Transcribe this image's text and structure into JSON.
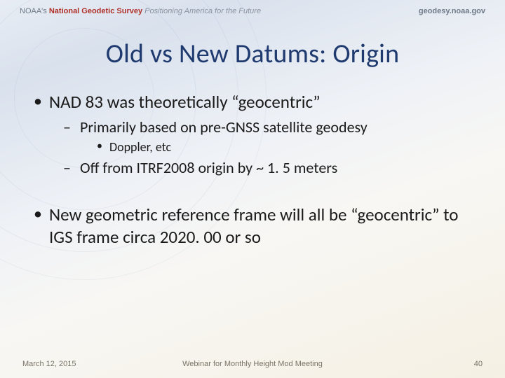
{
  "header": {
    "agency_prefix": "NOAA's",
    "agency_name": "National Geodetic Survey",
    "tagline": "Positioning America for the Future",
    "site": "geodesy.noaa.gov"
  },
  "title": "Old vs New Datums: Origin",
  "bullets": {
    "b1": "NAD 83 was theoretically “geocentric”",
    "b1_s1": "Primarily based on pre-GNSS satellite geodesy",
    "b1_s1_d1": "Doppler, etc",
    "b1_s2": "Off from ITRF2008 origin by ~ 1. 5 meters",
    "b2": "New geometric reference frame will all be “geocentric” to IGS frame circa 2020. 00 or so"
  },
  "footer": {
    "date": "March 12, 2015",
    "event": "Webinar for Monthly Height Mod Meeting",
    "page": "40"
  },
  "colors": {
    "title_color": "#1f3a6e",
    "body_text": "#1a1a1a",
    "header_red": "#b03028",
    "header_gray": "#6f7a88",
    "footer_gray": "#7a7468"
  }
}
